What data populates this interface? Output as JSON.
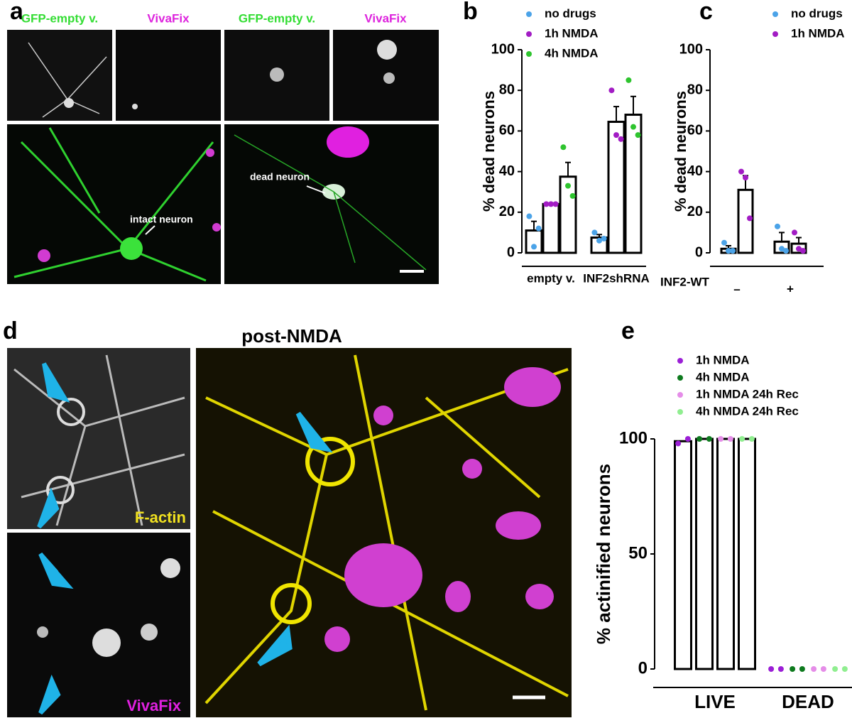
{
  "panel_labels": [
    "a",
    "b",
    "c",
    "d",
    "e"
  ],
  "panel_a": {
    "top_labels": [
      "GFP-empty v.",
      "VivaFix",
      "GFP-empty v.",
      "VivaFix"
    ],
    "annotations": [
      "intact neuron",
      "dead  neuron"
    ]
  },
  "panel_d": {
    "title": "post-NMDA",
    "labels": [
      "F-actin",
      "VivaFix"
    ]
  },
  "chart_data": [
    {
      "type": "bar",
      "ylabel": "% dead neurons",
      "categories": [
        "empty v.",
        "INF2shRNA"
      ],
      "ylim": [
        0,
        100
      ],
      "yticks": [
        0,
        20,
        40,
        60,
        80,
        100
      ],
      "series": [
        {
          "name": "no drugs",
          "color": "#4ba3e8",
          "values": [
            11,
            7.5
          ],
          "errors": [
            4.5,
            1.5
          ],
          "points": [
            [
              18,
              3,
              12
            ],
            [
              10,
              6,
              7
            ]
          ]
        },
        {
          "name": "1h NMDA",
          "color": "#a21cc4",
          "values": [
            24,
            64.5
          ],
          "errors": [
            0.5,
            7.5
          ],
          "points": [
            [
              24,
              24,
              24
            ],
            [
              80,
              58,
              56
            ]
          ]
        },
        {
          "name": "4h NMDA",
          "color": "#2ec42e",
          "values": [
            37.5,
            68
          ],
          "errors": [
            7,
            9
          ],
          "points": [
            [
              52,
              33,
              28
            ],
            [
              85,
              62,
              58
            ]
          ]
        }
      ]
    },
    {
      "type": "bar",
      "ylabel": "% dead neurons",
      "row_label": "INF2-WT",
      "categories": [
        "–",
        "+"
      ],
      "ylim": [
        0,
        100
      ],
      "yticks": [
        0,
        20,
        40,
        60,
        80,
        100
      ],
      "series": [
        {
          "name": "no drugs",
          "color": "#4ba3e8",
          "values": [
            2,
            5.5
          ],
          "errors": [
            1.5,
            4.5
          ],
          "points": [
            [
              5,
              1,
              1
            ],
            [
              13,
              2,
              1
            ]
          ]
        },
        {
          "name": "1h NMDA",
          "color": "#a21cc4",
          "values": [
            31,
            4.5
          ],
          "errors": [
            7,
            3
          ],
          "points": [
            [
              40,
              37,
              17
            ],
            [
              10,
              2,
              1
            ]
          ]
        }
      ]
    },
    {
      "type": "bar",
      "ylabel": "% actinified neurons",
      "categories": [
        "LIVE",
        "DEAD"
      ],
      "ylim": [
        0,
        100
      ],
      "yticks": [
        0,
        50,
        100
      ],
      "series": [
        {
          "name": "1h NMDA",
          "color": "#9b1fd6",
          "values": [
            99,
            0
          ],
          "points": [
            [
              98,
              100
            ],
            [
              0,
              0
            ]
          ]
        },
        {
          "name": "4h NMDA",
          "color": "#0e7a1e",
          "values": [
            100,
            0
          ],
          "points": [
            [
              100,
              100
            ],
            [
              0,
              0
            ]
          ]
        },
        {
          "name": "1h NMDA 24h Rec",
          "color": "#e58de8",
          "values": [
            100,
            0
          ],
          "points": [
            [
              100,
              100
            ],
            [
              0,
              0
            ]
          ]
        },
        {
          "name": "4h NMDA 24h Rec",
          "color": "#90ee90",
          "values": [
            100,
            0
          ],
          "points": [
            [
              100,
              100
            ],
            [
              0,
              0
            ]
          ]
        }
      ]
    }
  ]
}
